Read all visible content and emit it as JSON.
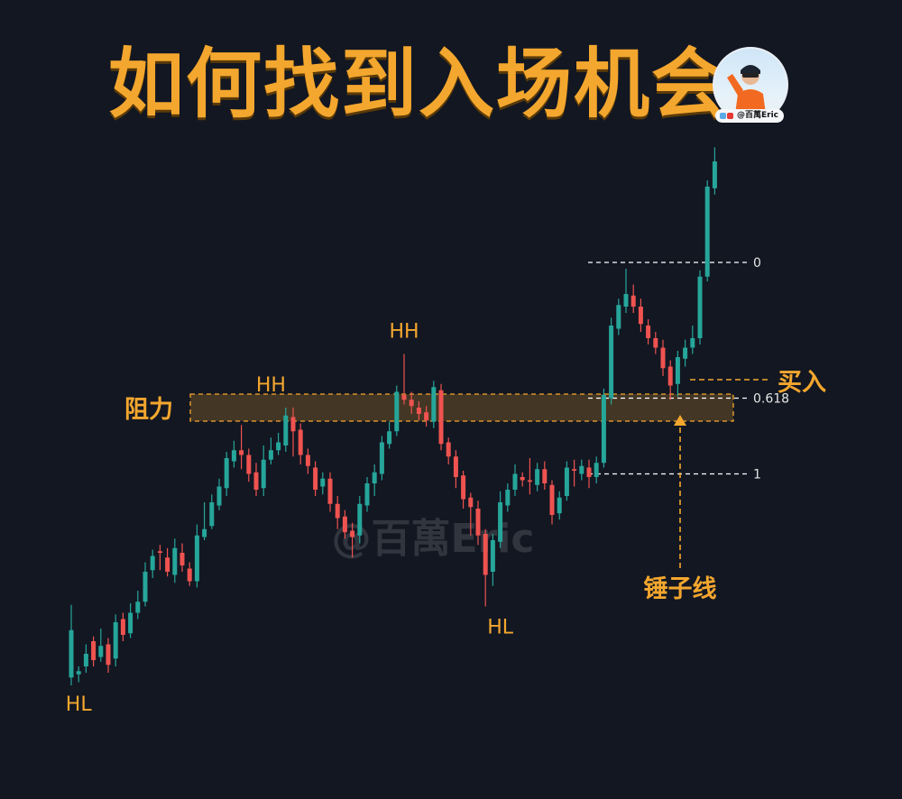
{
  "title": "如何找到入场机会",
  "handle": "@百萬Eric",
  "watermark": "@百萬Eric",
  "colors": {
    "up": "#26a69a",
    "down": "#ef5350",
    "accent": "#f4a72e",
    "background": "#131722"
  },
  "chart_data": {
    "type": "candlestick",
    "candles": [
      [
        0.5,
        3.5,
        0.0,
        5.1
      ],
      [
        0.7,
        0.9,
        0.2,
        1.2
      ],
      [
        1.2,
        2.0,
        0.8,
        2.6
      ],
      [
        2.8,
        1.6,
        1.2,
        3.1
      ],
      [
        1.8,
        2.5,
        1.5,
        3.6
      ],
      [
        2.6,
        1.3,
        0.8,
        3.0
      ],
      [
        1.7,
        4.0,
        1.2,
        4.5
      ],
      [
        4.2,
        3.2,
        2.8,
        4.6
      ],
      [
        3.3,
        4.6,
        3.0,
        5.2
      ],
      [
        4.6,
        5.3,
        4.2,
        6.0
      ],
      [
        5.3,
        7.2,
        5.0,
        7.8
      ],
      [
        7.3,
        8.2,
        6.8,
        8.6
      ],
      [
        8.5,
        8.4,
        7.3,
        8.9
      ],
      [
        8.1,
        7.2,
        6.9,
        8.7
      ],
      [
        7.0,
        8.7,
        6.5,
        9.3
      ],
      [
        8.4,
        7.6,
        7.2,
        9.0
      ],
      [
        7.4,
        6.6,
        6.3,
        7.8
      ],
      [
        6.6,
        9.5,
        6.2,
        10.2
      ],
      [
        9.4,
        9.9,
        9.2,
        11.6
      ],
      [
        10.1,
        11.6,
        9.9,
        12.1
      ],
      [
        11.4,
        12.6,
        11.1,
        13.1
      ],
      [
        12.5,
        14.4,
        12.0,
        14.8
      ],
      [
        14.2,
        14.9,
        13.8,
        15.5
      ],
      [
        14.9,
        14.6,
        13.7,
        16.5
      ],
      [
        14.6,
        13.4,
        12.9,
        15.0
      ],
      [
        13.5,
        12.4,
        12.0,
        14.1
      ],
      [
        12.5,
        14.3,
        12.0,
        15.2
      ],
      [
        14.3,
        14.9,
        14.0,
        15.7
      ],
      [
        14.9,
        15.4,
        14.6,
        16.0
      ],
      [
        15.2,
        17.1,
        14.8,
        17.6
      ],
      [
        17.0,
        16.1,
        14.5,
        17.6
      ],
      [
        16.2,
        14.6,
        14.0,
        16.6
      ],
      [
        14.6,
        13.9,
        13.4,
        15.0
      ],
      [
        13.8,
        12.4,
        12.0,
        14.2
      ],
      [
        12.6,
        13.1,
        12.1,
        13.5
      ],
      [
        13.1,
        11.5,
        11.0,
        13.5
      ],
      [
        11.5,
        10.6,
        9.9,
        12.0
      ],
      [
        10.7,
        9.7,
        9.3,
        11.1
      ],
      [
        9.8,
        9.4,
        8.1,
        10.3
      ],
      [
        9.5,
        11.5,
        9.0,
        12.0
      ],
      [
        11.4,
        12.8,
        11.0,
        13.2
      ],
      [
        12.8,
        13.5,
        12.0,
        14.0
      ],
      [
        13.4,
        15.4,
        13.0,
        15.8
      ],
      [
        15.3,
        16.1,
        15.0,
        16.7
      ],
      [
        16.1,
        18.6,
        15.8,
        19.0
      ],
      [
        18.4,
        18.1,
        17.8,
        21.0
      ],
      [
        18.1,
        17.7,
        17.2,
        18.6
      ],
      [
        17.6,
        17.2,
        16.8,
        18.0
      ],
      [
        17.3,
        16.8,
        16.4,
        17.7
      ],
      [
        16.7,
        18.9,
        16.3,
        19.3
      ],
      [
        18.7,
        15.3,
        14.9,
        19.1
      ],
      [
        15.4,
        14.5,
        14.0,
        15.7
      ],
      [
        14.5,
        13.2,
        12.5,
        14.9
      ],
      [
        13.3,
        11.8,
        11.2,
        13.6
      ],
      [
        11.9,
        11.3,
        9.5,
        12.2
      ],
      [
        11.2,
        9.5,
        8.9,
        11.7
      ],
      [
        9.6,
        7.0,
        5.0,
        9.9
      ],
      [
        7.2,
        9.2,
        6.3,
        9.6
      ],
      [
        9.1,
        11.6,
        8.7,
        12.3
      ],
      [
        11.4,
        12.4,
        11.0,
        12.8
      ],
      [
        12.4,
        13.4,
        12.0,
        14.0
      ],
      [
        13.2,
        13.0,
        12.6,
        13.5
      ],
      [
        13.0,
        12.9,
        12.1,
        14.4
      ],
      [
        12.7,
        13.7,
        12.3,
        14.1
      ],
      [
        13.7,
        12.8,
        12.4,
        14.2
      ],
      [
        12.7,
        10.8,
        10.2,
        13.0
      ],
      [
        10.9,
        11.9,
        10.5,
        12.3
      ],
      [
        12.0,
        13.8,
        11.7,
        14.2
      ],
      [
        13.7,
        13.6,
        12.6,
        14.3
      ],
      [
        13.4,
        13.9,
        13.0,
        14.3
      ],
      [
        13.8,
        13.2,
        12.5,
        14.3
      ],
      [
        13.2,
        14.1,
        12.8,
        14.5
      ],
      [
        14.1,
        18.4,
        13.8,
        18.8
      ],
      [
        18.2,
        22.8,
        17.8,
        23.3
      ],
      [
        22.6,
        24.1,
        22.2,
        24.5
      ],
      [
        24.0,
        24.8,
        23.6,
        26.4
      ],
      [
        24.7,
        24.0,
        23.6,
        25.4
      ],
      [
        24.0,
        22.9,
        22.4,
        24.5
      ],
      [
        22.8,
        22.0,
        21.6,
        23.2
      ],
      [
        22.0,
        21.4,
        21.0,
        22.4
      ],
      [
        21.4,
        20.1,
        19.6,
        21.9
      ],
      [
        20.2,
        19.0,
        18.1,
        20.6
      ],
      [
        19.1,
        20.8,
        18.3,
        21.2
      ],
      [
        20.7,
        21.4,
        20.2,
        21.9
      ],
      [
        21.4,
        22.0,
        21.0,
        22.8
      ],
      [
        22.0,
        25.9,
        21.6,
        26.3
      ],
      [
        25.9,
        31.6,
        25.6,
        32.0
      ],
      [
        31.5,
        33.2,
        31.1,
        34.1
      ]
    ],
    "labels": [
      "HL",
      "HH",
      "HH",
      "HL"
    ],
    "resistance_label": "阻力",
    "fib_levels": [
      {
        "label": "0",
        "value": 26.8
      },
      {
        "label": "0.618",
        "value": 18.2
      },
      {
        "label": "1",
        "value": 13.4
      }
    ],
    "buy_label": "买入",
    "buy_value": 20.0,
    "hammer_label": "锤子线"
  }
}
